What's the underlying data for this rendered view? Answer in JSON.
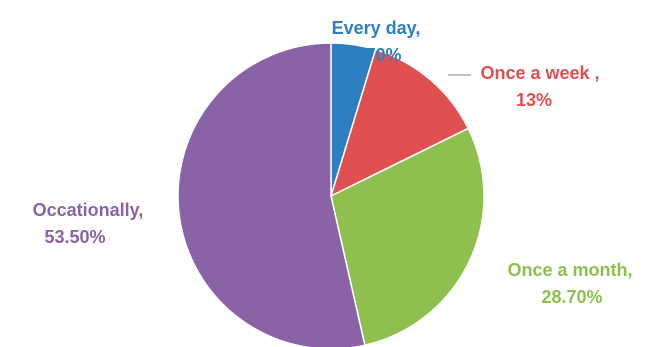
{
  "chart_data": {
    "type": "pie",
    "title": "",
    "legend": "none",
    "slices": [
      {
        "label": "Every day",
        "value": 4.7,
        "value_text": "4.70%",
        "color": "#2e7fc2"
      },
      {
        "label": "Once a week ",
        "value": 13,
        "value_text": "13%",
        "color": "#e05050"
      },
      {
        "label": "Once a month",
        "value": 28.7,
        "value_text": "28.70%",
        "color": "#8fbf4e"
      },
      {
        "label": "Occationally",
        "value": 53.5,
        "value_text": "53.50%",
        "color": "#8a63a7"
      }
    ]
  }
}
